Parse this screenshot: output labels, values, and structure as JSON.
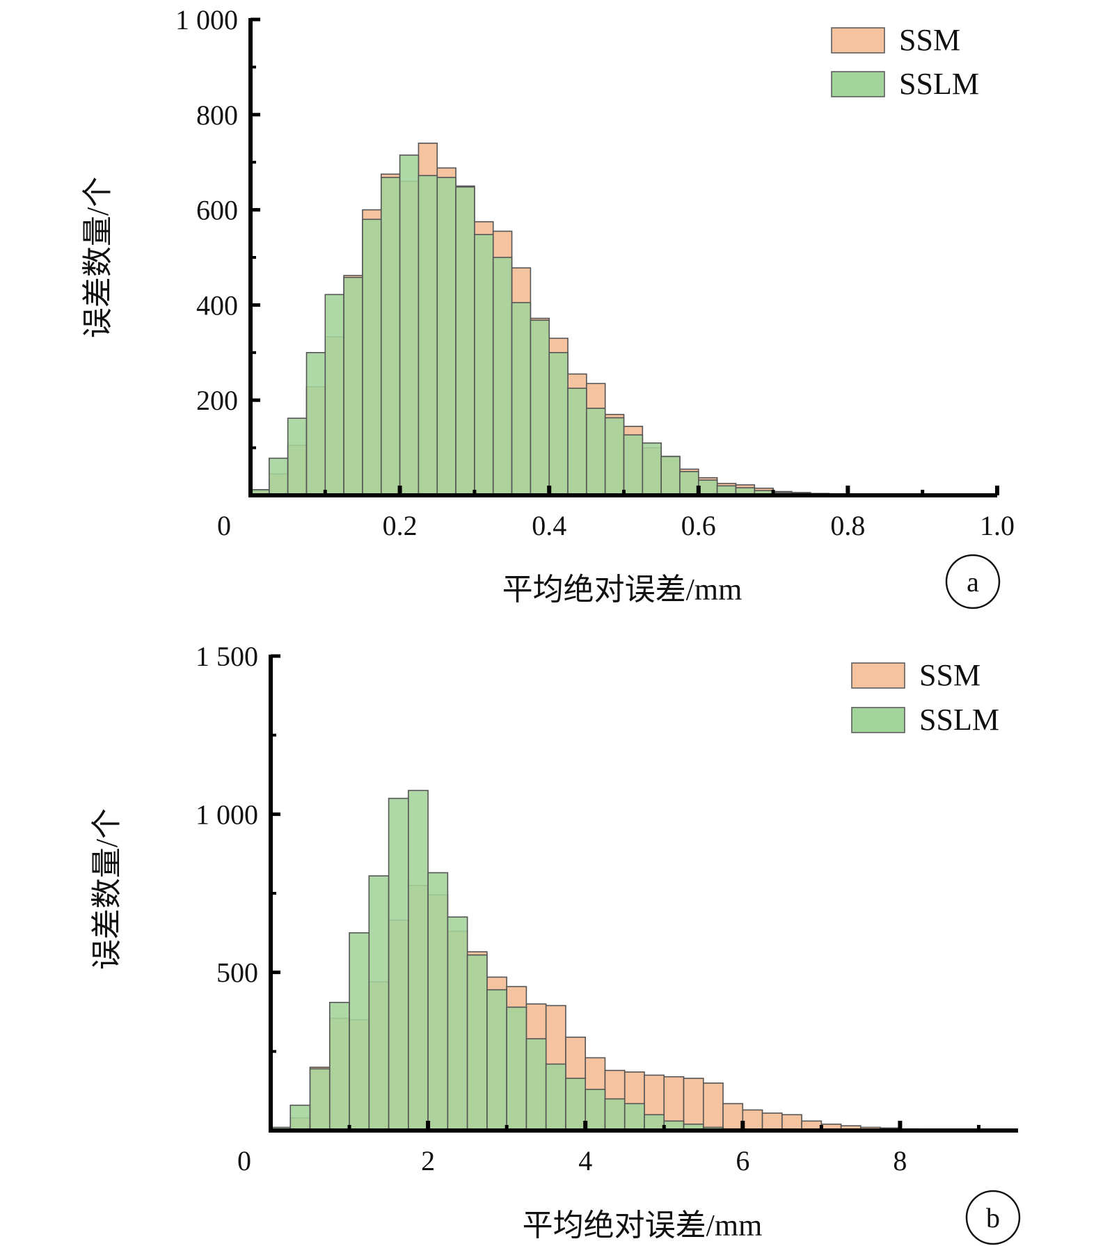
{
  "colors": {
    "ssm": "#f5c3a0",
    "sslm": "#a3d49b",
    "bar_stroke": "#555555",
    "axis": "#000000"
  },
  "chart_data": [
    {
      "type": "bar",
      "panel": "a",
      "xlabel": "平均绝对误差/mm",
      "ylabel": "误差数量/个",
      "xlim": [
        0,
        1.0
      ],
      "ylim": [
        0,
        1000
      ],
      "x_ticks": [
        "0",
        "0.2",
        "0.4",
        "0.6",
        "0.8",
        "1.0"
      ],
      "x_tick_values": [
        0,
        0.2,
        0.4,
        0.6,
        0.8,
        1.0
      ],
      "y_ticks": [
        "200",
        "400",
        "600",
        "800",
        "1 000"
      ],
      "y_tick_values": [
        200,
        400,
        600,
        800,
        1000
      ],
      "legend": [
        "SSM",
        "SSLM"
      ],
      "legend_position": "top-right",
      "bin_width": 0.025,
      "bin_starts": [
        0.0,
        0.025,
        0.05,
        0.075,
        0.1,
        0.125,
        0.15,
        0.175,
        0.2,
        0.225,
        0.25,
        0.275,
        0.3,
        0.325,
        0.35,
        0.375,
        0.4,
        0.425,
        0.45,
        0.475,
        0.5,
        0.525,
        0.55,
        0.575,
        0.6,
        0.625,
        0.65,
        0.675,
        0.7,
        0.725,
        0.75,
        0.775,
        0.8,
        0.825
      ],
      "series": [
        {
          "name": "SSM",
          "values": [
            10,
            45,
            105,
            228,
            333,
            462,
            600,
            675,
            660,
            740,
            688,
            650,
            575,
            555,
            478,
            372,
            330,
            255,
            235,
            170,
            145,
            100,
            80,
            55,
            37,
            25,
            22,
            15,
            8,
            6,
            4,
            3,
            2,
            1
          ]
        },
        {
          "name": "SSLM",
          "values": [
            12,
            78,
            162,
            300,
            422,
            458,
            580,
            668,
            715,
            672,
            668,
            648,
            548,
            500,
            405,
            368,
            300,
            225,
            183,
            163,
            127,
            110,
            82,
            50,
            32,
            20,
            16,
            10,
            6,
            4,
            3,
            2,
            1,
            1
          ]
        }
      ]
    },
    {
      "type": "bar",
      "panel": "b",
      "xlabel": "平均绝对误差/mm",
      "ylabel": "误差数量/个",
      "xlim": [
        0,
        9.5
      ],
      "ylim": [
        0,
        1500
      ],
      "x_ticks": [
        "0",
        "2",
        "4",
        "6",
        "8"
      ],
      "x_tick_values": [
        0,
        2,
        4,
        6,
        8
      ],
      "y_ticks": [
        "500",
        "1 000",
        "1 500"
      ],
      "y_tick_values": [
        500,
        1000,
        1500
      ],
      "legend": [
        "SSM",
        "SSLM"
      ],
      "legend_position": "top-right",
      "bin_width": 0.25,
      "bin_starts": [
        0.0,
        0.25,
        0.5,
        0.75,
        1.0,
        1.25,
        1.5,
        1.75,
        2.0,
        2.25,
        2.5,
        2.75,
        3.0,
        3.25,
        3.5,
        3.75,
        4.0,
        4.25,
        4.5,
        4.75,
        5.0,
        5.25,
        5.5,
        5.75,
        6.0,
        6.25,
        6.5,
        6.75,
        7.0,
        7.25,
        7.5,
        7.75,
        8.0
      ],
      "series": [
        {
          "name": "SSM",
          "values": [
            8,
            40,
            200,
            355,
            350,
            470,
            665,
            775,
            745,
            630,
            565,
            485,
            455,
            400,
            395,
            295,
            230,
            190,
            185,
            175,
            170,
            165,
            150,
            85,
            65,
            55,
            50,
            30,
            20,
            15,
            10,
            8,
            5
          ]
        },
        {
          "name": "SSLM",
          "values": [
            10,
            80,
            195,
            405,
            625,
            805,
            1050,
            1075,
            815,
            675,
            555,
            445,
            390,
            290,
            210,
            165,
            130,
            100,
            85,
            50,
            30,
            20,
            10,
            5,
            3,
            2,
            1,
            1,
            0,
            0,
            0,
            0,
            0
          ]
        }
      ]
    }
  ]
}
